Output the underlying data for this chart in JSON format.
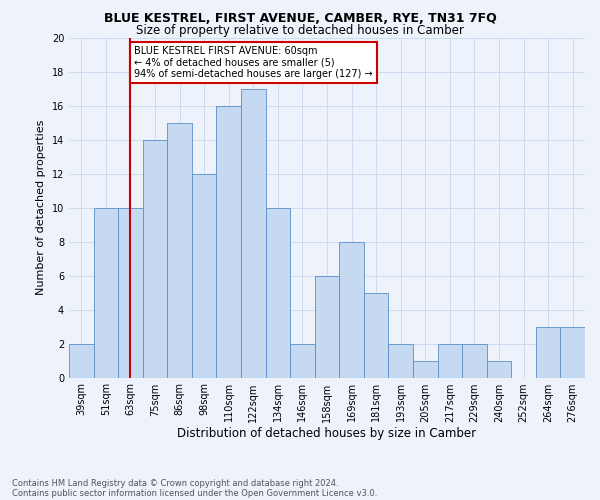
{
  "title": "BLUE KESTREL, FIRST AVENUE, CAMBER, RYE, TN31 7FQ",
  "subtitle": "Size of property relative to detached houses in Camber",
  "xlabel": "Distribution of detached houses by size in Camber",
  "ylabel": "Number of detached properties",
  "footnote1": "Contains HM Land Registry data © Crown copyright and database right 2024.",
  "footnote2": "Contains public sector information licensed under the Open Government Licence v3.0.",
  "categories": [
    "39sqm",
    "51sqm",
    "63sqm",
    "75sqm",
    "86sqm",
    "98sqm",
    "110sqm",
    "122sqm",
    "134sqm",
    "146sqm",
    "158sqm",
    "169sqm",
    "181sqm",
    "193sqm",
    "205sqm",
    "217sqm",
    "229sqm",
    "240sqm",
    "252sqm",
    "264sqm",
    "276sqm"
  ],
  "values": [
    2,
    10,
    10,
    14,
    15,
    12,
    16,
    17,
    10,
    2,
    6,
    8,
    5,
    2,
    1,
    2,
    2,
    1,
    0,
    3,
    3
  ],
  "bar_color": "#c5d9f0",
  "bar_edge_color": "#5b8fc9",
  "grid_color": "#c8d8ee",
  "subject_line_color": "#cc0000",
  "annotation_box_color": "#cc0000",
  "ylim": [
    0,
    20
  ],
  "yticks": [
    0,
    2,
    4,
    6,
    8,
    10,
    12,
    14,
    16,
    18,
    20
  ],
  "bg_color": "#eef2fb",
  "title_fontsize": 9,
  "subtitle_fontsize": 8.5,
  "ylabel_fontsize": 8,
  "xlabel_fontsize": 8.5,
  "tick_fontsize": 7,
  "annotation_fontsize": 7,
  "footnote_fontsize": 6
}
